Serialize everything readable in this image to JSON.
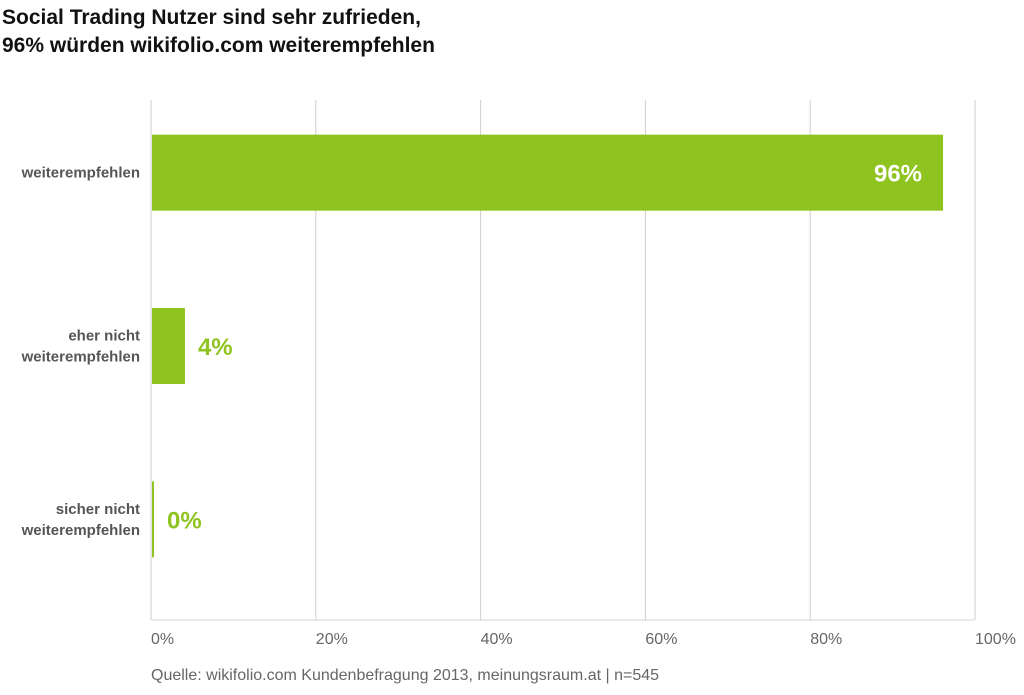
{
  "chart_data": {
    "type": "bar",
    "orientation": "horizontal",
    "title": [
      "Social Trading Nutzer sind sehr zufrieden,",
      "96% würden wikifolio.com weiterempfehlen"
    ],
    "categories": [
      [
        "weiterempfehlen"
      ],
      [
        "eher nicht",
        "weiterempfehlen"
      ],
      [
        "sicher nicht",
        "weiterempfehlen"
      ]
    ],
    "values": [
      96,
      4,
      0
    ],
    "data_labels": [
      "96%",
      "4%",
      "0%"
    ],
    "xlim": [
      0,
      100
    ],
    "xticks": [
      0,
      20,
      40,
      60,
      80,
      100
    ],
    "xtick_labels": [
      "0%",
      "20%",
      "40%",
      "60%",
      "80%",
      "100%"
    ],
    "grid": true,
    "xlabel": "",
    "ylabel": "",
    "bar_color": "#8fc31f",
    "source": "Quelle: wikifolio.com Kundenbefragung 2013, meinungsraum.at | n=545"
  }
}
